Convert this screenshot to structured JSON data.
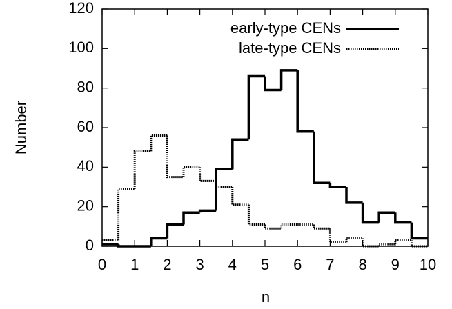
{
  "chart_data": {
    "type": "histogram",
    "xlabel": "n",
    "ylabel": "Number",
    "bins": [
      0,
      0.5,
      1,
      1.5,
      2,
      2.5,
      3,
      3.5,
      4,
      4.5,
      5,
      5.5,
      6,
      6.5,
      7,
      7.5,
      8,
      8.5,
      9,
      9.5,
      10
    ],
    "series": [
      {
        "name": "early-type CENs",
        "color": "#000000",
        "style": "solid",
        "values": [
          1,
          0,
          0,
          4,
          11,
          17,
          18,
          39,
          54,
          86,
          79,
          89,
          58,
          32,
          30,
          22,
          12,
          17,
          12,
          4
        ]
      },
      {
        "name": "late-type CENs",
        "color": "#000000",
        "style": "dotted",
        "values": [
          3,
          29,
          48,
          56,
          35,
          40,
          33,
          30,
          21,
          11,
          9,
          11,
          11,
          9,
          2,
          4,
          0,
          1,
          3,
          0
        ]
      }
    ],
    "xlim": [
      0,
      10
    ],
    "ylim": [
      0,
      120
    ],
    "xticks": [
      0,
      1,
      2,
      3,
      4,
      5,
      6,
      7,
      8,
      9,
      10
    ],
    "yticks": [
      0,
      20,
      40,
      60,
      80,
      100,
      120
    ],
    "legend": "top-right",
    "grid": false
  }
}
